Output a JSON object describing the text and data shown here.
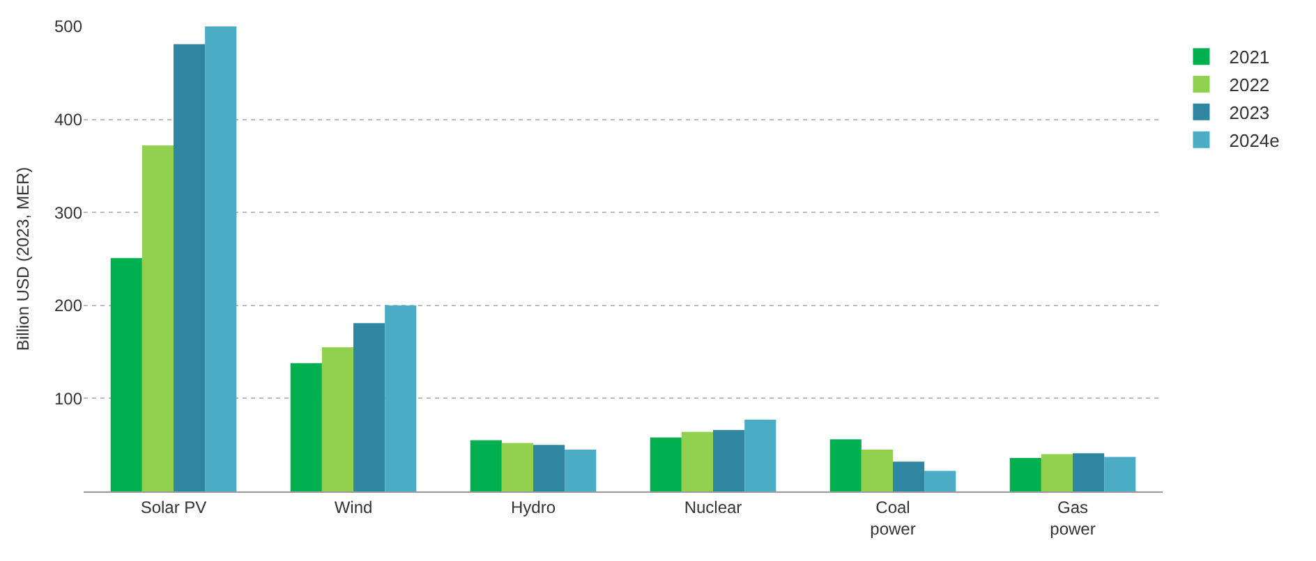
{
  "chart_data": {
    "type": "bar",
    "ylabel": "Billion USD (2023, MER)",
    "categories": [
      "Solar PV",
      "Wind",
      "Hydro",
      "Nuclear",
      "Coal\npower",
      "Gas\npower"
    ],
    "series": [
      {
        "name": "2021",
        "color": "#00b050",
        "values": [
          251,
          138,
          55,
          58,
          56,
          36
        ]
      },
      {
        "name": "2022",
        "color": "#92d050",
        "values": [
          372,
          155,
          52,
          64,
          45,
          40
        ]
      },
      {
        "name": "2023",
        "color": "#2e86a0",
        "values": [
          481,
          181,
          50,
          66,
          32,
          41
        ]
      },
      {
        "name": "2024e",
        "color": "#4bacc6",
        "values": [
          500,
          200,
          45,
          77,
          22,
          37
        ]
      }
    ],
    "ylim": [
      0,
      500
    ],
    "yticks": [
      100,
      200,
      300,
      400,
      500
    ],
    "grid": "y",
    "legend": "top right"
  }
}
